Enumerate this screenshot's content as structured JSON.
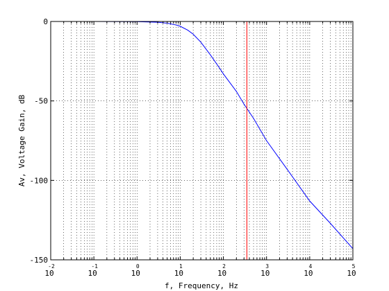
{
  "chart_data": {
    "type": "line",
    "title": "",
    "xlabel": "f, Frequency, Hz",
    "ylabel": "Av, Voltage Gain, dB",
    "xscale": "log",
    "xlim": [
      0.01,
      100000
    ],
    "ylim": [
      -150,
      0
    ],
    "grid": true,
    "x_ticks": [
      {
        "base": "10",
        "exp": "-2"
      },
      {
        "base": "10",
        "exp": "-1"
      },
      {
        "base": "10",
        "exp": "0"
      },
      {
        "base": "10",
        "exp": "1"
      },
      {
        "base": "10",
        "exp": "2"
      },
      {
        "base": "10",
        "exp": "3"
      },
      {
        "base": "10",
        "exp": "4"
      },
      {
        "base": "10",
        "exp": "5"
      }
    ],
    "y_ticks": [
      "0",
      "-50",
      "-100",
      "-150"
    ],
    "series": [
      {
        "color": "#0000ff",
        "x": [
          0.01,
          0.1,
          1,
          3,
          5,
          8,
          10,
          15,
          20,
          30,
          50,
          80,
          100,
          200,
          300,
          500,
          1000,
          3000,
          10000,
          30000,
          100000
        ],
        "y": [
          0,
          0,
          -0.1,
          -0.5,
          -1.1,
          -2.2,
          -3.0,
          -5.5,
          -8.0,
          -13,
          -21,
          -29,
          -33,
          -44,
          -52,
          -61,
          -75,
          -93,
          -113,
          -127,
          -143
        ]
      }
    ],
    "marker_line": {
      "x": 350,
      "color": "#ff0000"
    }
  }
}
